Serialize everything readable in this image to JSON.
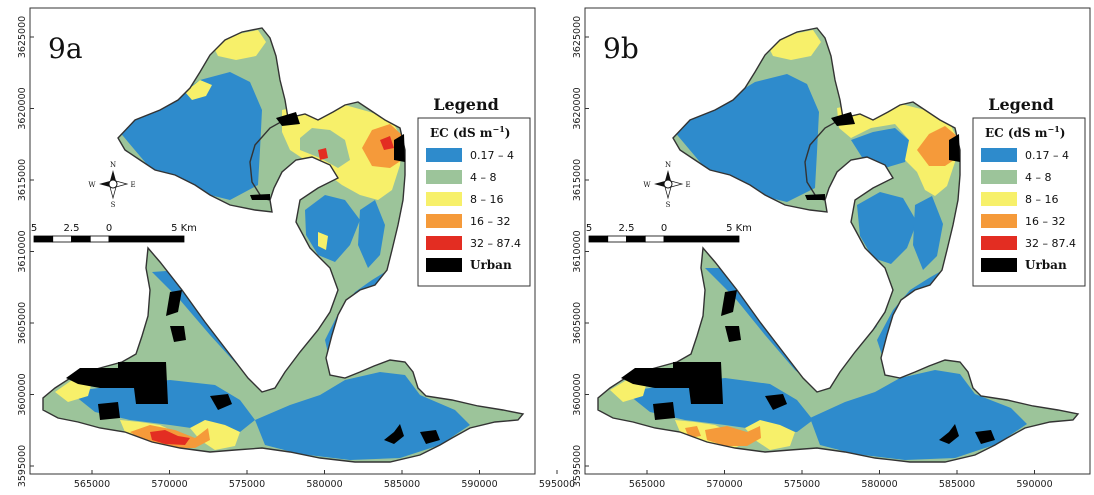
{
  "colors": {
    "blue": "#2e8bcc",
    "green": "#9cc49a",
    "yellow": "#f7f06a",
    "orange": "#f59a3a",
    "red": "#e32d22",
    "urban": "#000000",
    "outline": "#333333"
  },
  "legend": {
    "title": "Legend",
    "subtitle_main": "EC (dS m",
    "subtitle_exp": "−1",
    "subtitle_close": ")",
    "classes": [
      {
        "label": "0.17 – 4",
        "color": "#2e8bcc"
      },
      {
        "label": "4 – 8",
        "color": "#9cc49a"
      },
      {
        "label": "8 – 16",
        "color": "#f7f06a"
      },
      {
        "label": "16 – 32",
        "color": "#f59a3a"
      },
      {
        "label": "32 – 87.4",
        "color": "#e32d22"
      },
      {
        "label": "Urban",
        "color": "#000000"
      }
    ]
  },
  "axes": {
    "y_ticks": [
      "3595000",
      "3600000",
      "3605000",
      "3610000",
      "3615000",
      "3620000",
      "3625000"
    ],
    "x_ticks": [
      "565000",
      "570000",
      "575000",
      "580000",
      "585000",
      "590000",
      "595000"
    ]
  },
  "compass": {
    "n": "N",
    "s": "S",
    "e": "E",
    "w": "W"
  },
  "scale_bar": {
    "labels": [
      "5",
      "2.5",
      "0",
      "5 Km"
    ]
  },
  "panels": [
    {
      "label": "9a"
    },
    {
      "label": "9b"
    }
  ]
}
